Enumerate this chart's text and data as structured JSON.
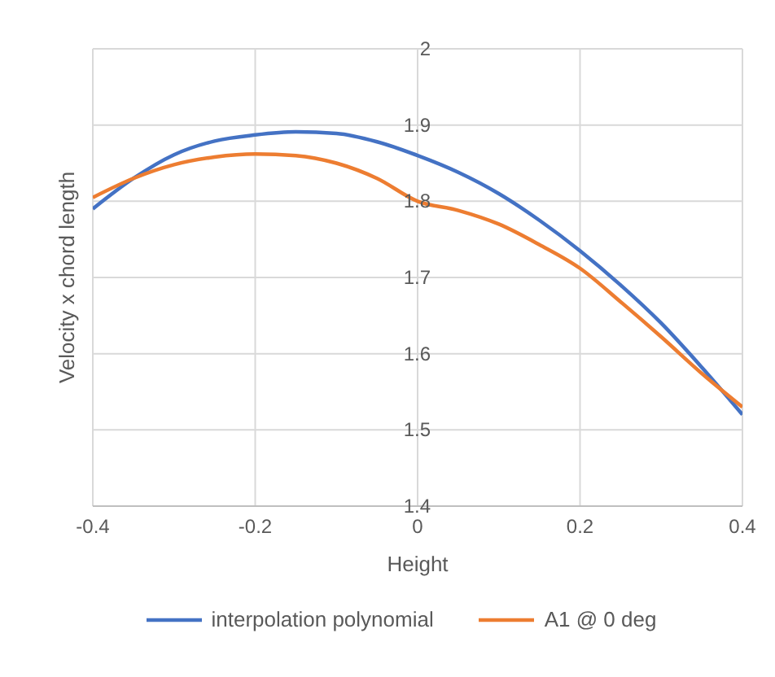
{
  "chart_data": {
    "type": "line",
    "xlabel": "Height",
    "ylabel": "Velocity x chord length",
    "xlim": [
      -0.4,
      0.4
    ],
    "xticks": [
      -0.4,
      -0.2,
      0,
      0.2,
      0.4
    ],
    "ylim": [
      1.4,
      2
    ],
    "yticks": [
      1.4,
      1.5,
      1.6,
      1.7,
      1.8,
      1.9,
      2
    ],
    "grid": true,
    "legend": "bottom",
    "marker": "none",
    "line_style": "solid",
    "series": [
      {
        "name": "interpolation polynomial",
        "color": "#4472c4",
        "x": [
          -0.4,
          -0.35,
          -0.3,
          -0.25,
          -0.2,
          -0.15,
          -0.1,
          -0.05,
          0,
          0.05,
          0.1,
          0.15,
          0.2,
          0.25,
          0.3,
          0.35,
          0.4
        ],
        "values": [
          1.79,
          1.83,
          1.861,
          1.879,
          1.887,
          1.891,
          1.889,
          1.878,
          1.86,
          1.838,
          1.81,
          1.775,
          1.735,
          1.69,
          1.64,
          1.582,
          1.52
        ]
      },
      {
        "name": "A1 @ 0 deg",
        "color": "#ed7d31",
        "x": [
          -0.4,
          -0.35,
          -0.3,
          -0.25,
          -0.2,
          -0.15,
          -0.1,
          -0.05,
          0,
          0.05,
          0.1,
          0.15,
          0.2,
          0.25,
          0.3,
          0.35,
          0.4
        ],
        "values": [
          1.805,
          1.83,
          1.848,
          1.858,
          1.862,
          1.86,
          1.85,
          1.83,
          1.8,
          1.788,
          1.77,
          1.743,
          1.712,
          1.668,
          1.622,
          1.574,
          1.53
        ]
      }
    ]
  }
}
